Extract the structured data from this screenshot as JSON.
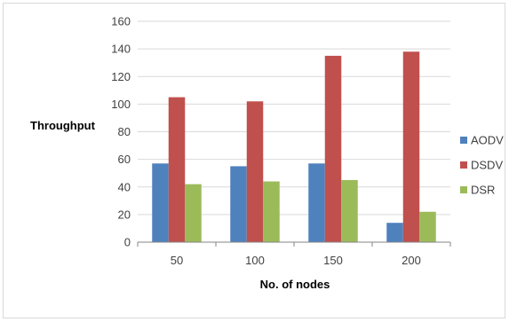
{
  "chart_data": {
    "type": "bar",
    "title": "",
    "xlabel": "No. of nodes",
    "ylabel": "Throughput",
    "categories": [
      "50",
      "100",
      "150",
      "200"
    ],
    "series": [
      {
        "name": "AODV",
        "color": "#4f81bd",
        "values": [
          57,
          55,
          57,
          14
        ]
      },
      {
        "name": "DSDV",
        "color": "#c0504d",
        "values": [
          105,
          102,
          135,
          138
        ]
      },
      {
        "name": "DSR",
        "color": "#9bbb59",
        "values": [
          42,
          44,
          45,
          22
        ]
      }
    ],
    "ylim": [
      0,
      160
    ],
    "yticks": [
      0,
      20,
      40,
      60,
      80,
      100,
      120,
      140,
      160
    ],
    "grid": true,
    "legend": "right"
  }
}
